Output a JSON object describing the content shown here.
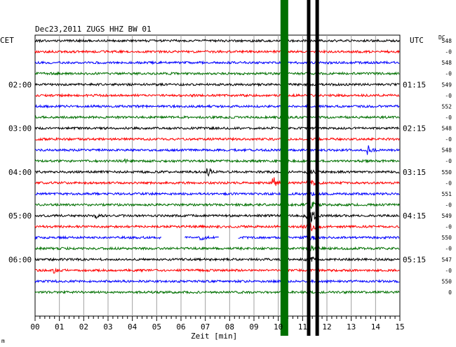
{
  "chart_data": {
    "type": "line",
    "title": "Dec23,2011   ZUGS HHZ BW 01",
    "xlabel": "Zeit [min]",
    "left_timezone": "CET",
    "right_timezone": "UTC",
    "dc_header": "DC",
    "xlim": [
      0,
      15
    ],
    "x_ticks": [
      "00",
      "01",
      "02",
      "03",
      "04",
      "05",
      "06",
      "07",
      "08",
      "09",
      "10",
      "11",
      "12",
      "13",
      "14",
      "15"
    ],
    "left_time_labels": [
      {
        "row": 4,
        "label": "02:00"
      },
      {
        "row": 8,
        "label": "03:00"
      },
      {
        "row": 12,
        "label": "04:00"
      },
      {
        "row": 16,
        "label": "05:00"
      },
      {
        "row": 20,
        "label": "06:00"
      }
    ],
    "right_time_labels": [
      {
        "row": 4,
        "label": "01:15"
      },
      {
        "row": 8,
        "label": "02:15"
      },
      {
        "row": 12,
        "label": "03:15"
      },
      {
        "row": 16,
        "label": "04:15"
      },
      {
        "row": 20,
        "label": "05:15"
      }
    ],
    "dc_labels": [
      "548",
      "-0",
      "548",
      "-0",
      "549",
      "-0",
      "552",
      "-0",
      "548",
      "-0",
      "548",
      "-0",
      "550",
      "-0",
      "551",
      "-0",
      "549",
      "-0",
      "550",
      "-0",
      "547",
      "-0",
      "550",
      "0"
    ],
    "trace_colors": [
      "#000000",
      "#ff0000",
      "#0000ff",
      "#007000"
    ],
    "trace_count": 24,
    "trace_interval_minutes": 15,
    "vertical_bars": [
      {
        "x": 10.25,
        "color": "#007000",
        "label": "green"
      },
      {
        "x": 11.25,
        "color": "#000000",
        "label": "black"
      },
      {
        "x": 11.6,
        "color": "#000000",
        "label": "black"
      }
    ],
    "data_gaps": [
      {
        "row": 18,
        "x_start": 5.2,
        "x_end": 6.15
      },
      {
        "row": 18,
        "x_start": 7.55,
        "x_end": 8.35
      }
    ],
    "events": [
      {
        "row": 10,
        "x": 13.7,
        "amp": 6
      },
      {
        "row": 11,
        "x": 3.7,
        "amp": 4
      },
      {
        "row": 12,
        "x": 7.1,
        "amp": 9
      },
      {
        "row": 13,
        "x": 9.8,
        "amp": 11
      },
      {
        "row": 16,
        "x": 2.5,
        "amp": 4
      },
      {
        "row": 18,
        "x": 6.8,
        "amp": 4
      },
      {
        "row": 21,
        "x": 0.8,
        "amp": 3
      }
    ],
    "footer_mark": "m"
  }
}
